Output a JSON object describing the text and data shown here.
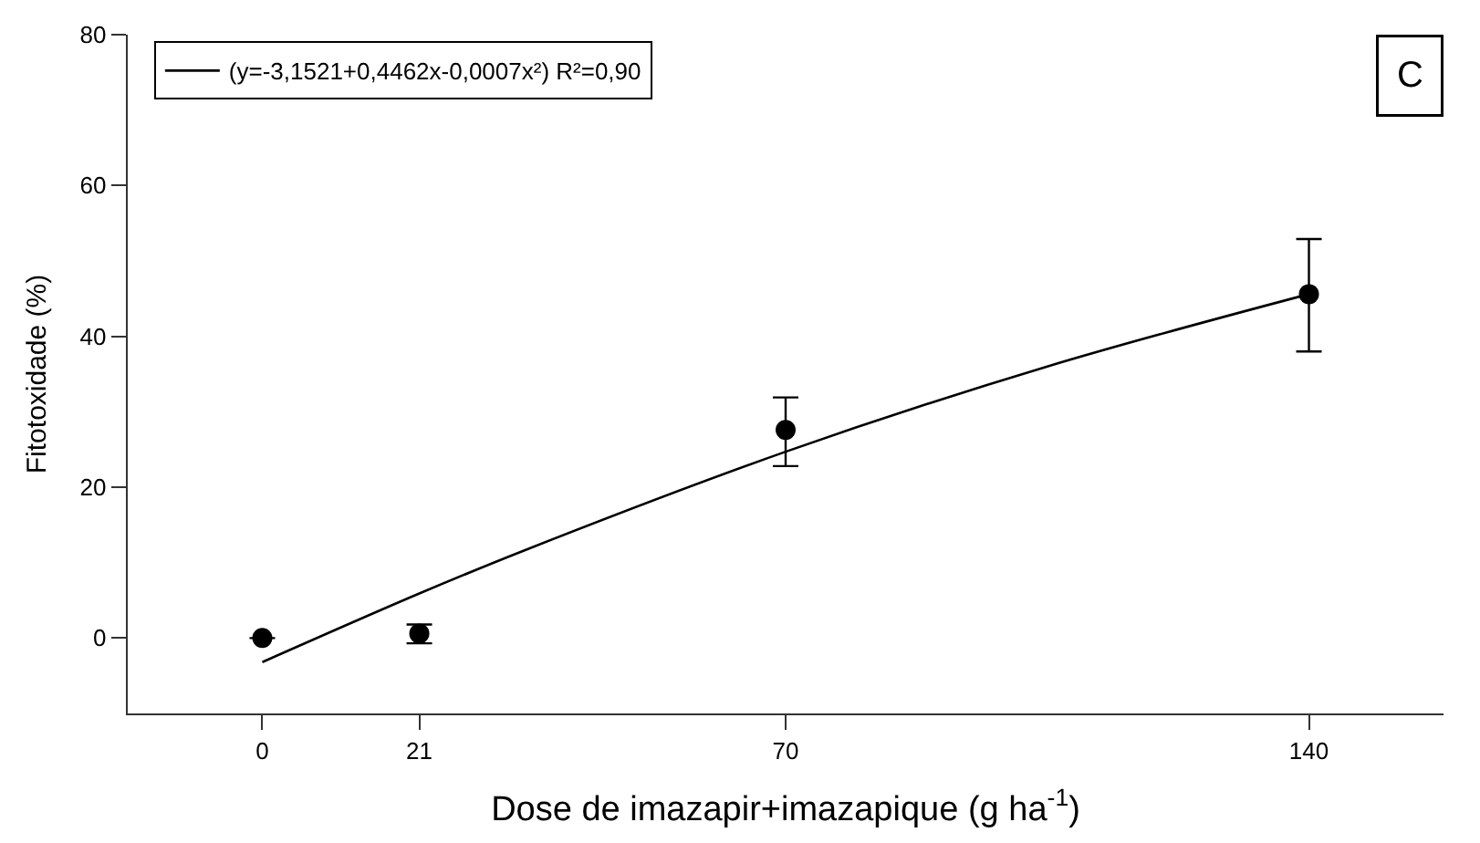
{
  "chart_data": {
    "type": "scatter",
    "xlabel": "Dose de imazapir+imazapique (g ha$^{-1}$)",
    "ylabel": "Fitotoxidade (%)",
    "annotations": [
      "C"
    ],
    "xlim": [
      -18,
      158
    ],
    "xticks": [
      0,
      21,
      70,
      140
    ],
    "ylim": [
      -10,
      80
    ],
    "yticks": [
      0,
      20,
      40,
      60,
      80
    ],
    "grid": false,
    "legend": "top left",
    "series": [
      {
        "color": "#000000",
        "marker": "circle",
        "x": [
          0,
          21,
          70,
          140
        ],
        "values": [
          0,
          0.6,
          27.6,
          45.6
        ],
        "errors": [
          null,
          [
            -0.7,
            1.8
          ],
          [
            22.8,
            31.9
          ],
          [
            38.0,
            52.9
          ]
        ]
      },
      {
        "type": "line",
        "name": "(y=-3,1521+0,4462x-0,0007x²) R²=0,90",
        "color": "#000000",
        "marker": "none",
        "line_style": "solid",
        "x": [
          0,
          21,
          35,
          70,
          105,
          140
        ],
        "values": [
          -3.2,
          5.9,
          11.6,
          24.7,
          36.0,
          45.6
        ]
      }
    ]
  }
}
